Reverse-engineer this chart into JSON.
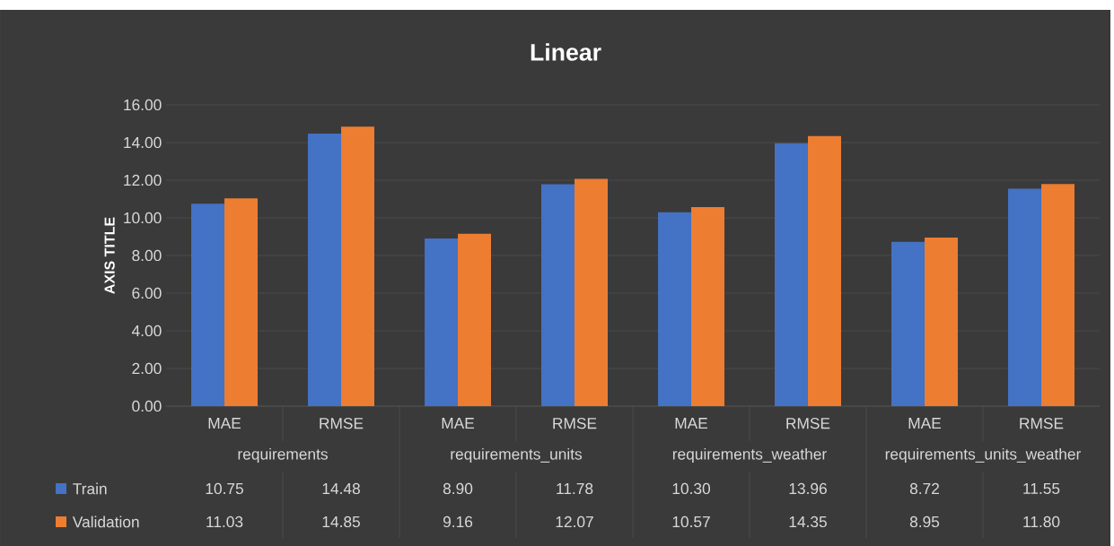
{
  "chart_data": {
    "type": "bar",
    "title": "Linear",
    "ylabel": "AXIS TITLE",
    "categories": [
      "MAE",
      "RMSE",
      "MAE",
      "RMSE",
      "MAE",
      "RMSE",
      "MAE",
      "RMSE"
    ],
    "annotations": [
      "requirements",
      "requirements_units",
      "requirements_weather",
      "requirements_units_weather"
    ],
    "series": [
      {
        "name": "Train",
        "color": "#4472c4",
        "values": [
          10.75,
          14.48,
          8.9,
          11.78,
          10.3,
          13.96,
          8.72,
          11.55
        ],
        "value_labels": [
          "10.75",
          "14.48",
          "8.90",
          "11.78",
          "10.30",
          "13.96",
          "8.72",
          "11.55"
        ]
      },
      {
        "name": "Validation",
        "color": "#ed7d31",
        "values": [
          11.03,
          14.85,
          9.16,
          12.07,
          10.57,
          14.35,
          8.95,
          11.8
        ],
        "value_labels": [
          "11.03",
          "14.85",
          "9.16",
          "12.07",
          "10.57",
          "14.35",
          "8.95",
          "11.80"
        ]
      }
    ],
    "ylim": [
      0,
      16
    ],
    "yticks": [
      {
        "value": 0,
        "label": "0.00"
      },
      {
        "value": 2,
        "label": "2.00"
      },
      {
        "value": 4,
        "label": "4.00"
      },
      {
        "value": 6,
        "label": "6.00"
      },
      {
        "value": 8,
        "label": "8.00"
      },
      {
        "value": 10,
        "label": "10.00"
      },
      {
        "value": 12,
        "label": "12.00"
      },
      {
        "value": 14,
        "label": "14.00"
      },
      {
        "value": 16,
        "label": "16.00"
      }
    ],
    "grid": "y",
    "legend": "bottom"
  }
}
